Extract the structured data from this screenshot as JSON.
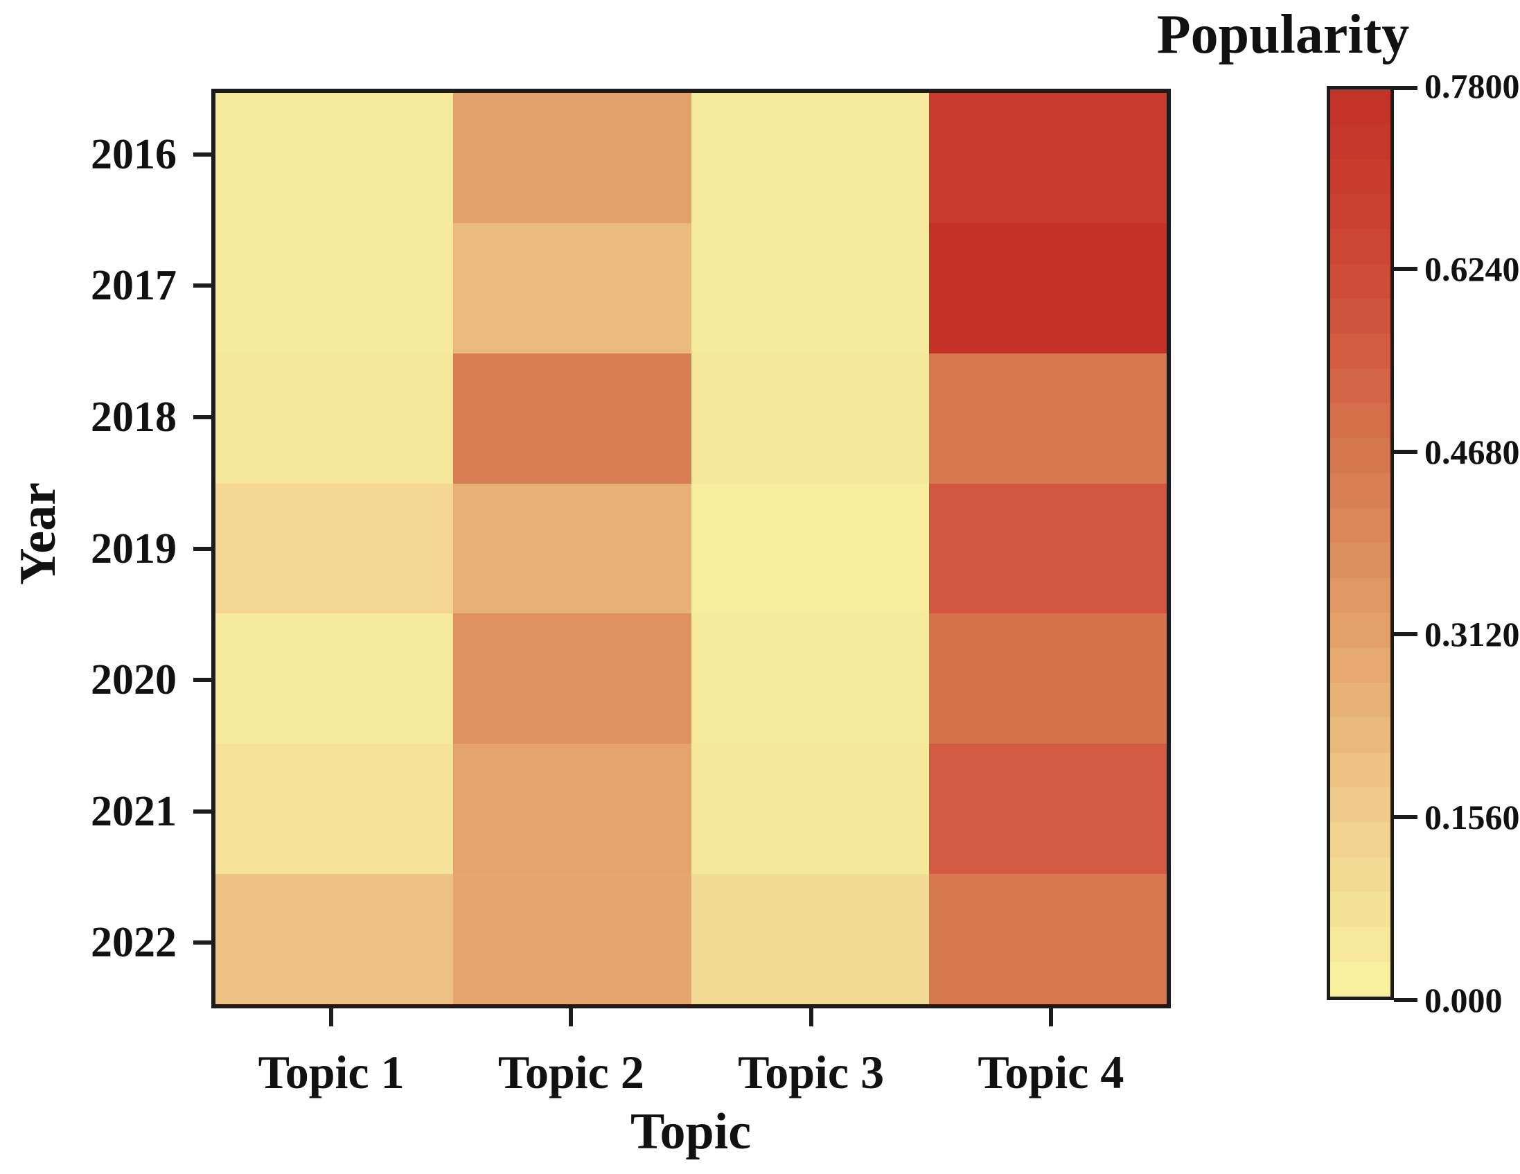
{
  "figure": {
    "background_color": "#ffffff",
    "frame_color": "#1c1c1c",
    "text_color": "#111111"
  },
  "chart_data": {
    "type": "heatmap",
    "colorbar_title": "Popularity",
    "xlabel": "Topic",
    "ylabel": "Year",
    "x_categories": [
      "Topic 1",
      "Topic 2",
      "Topic 3",
      "Topic 4"
    ],
    "y_categories": [
      "2016",
      "2017",
      "2018",
      "2019",
      "2020",
      "2021",
      "2022"
    ],
    "values": [
      [
        0.04,
        0.31,
        0.04,
        0.72
      ],
      [
        0.04,
        0.22,
        0.04,
        0.78
      ],
      [
        0.05,
        0.44,
        0.05,
        0.46
      ],
      [
        0.12,
        0.26,
        0.03,
        0.58
      ],
      [
        0.04,
        0.37,
        0.04,
        0.48
      ],
      [
        0.07,
        0.3,
        0.05,
        0.56
      ],
      [
        0.2,
        0.29,
        0.1,
        0.46
      ]
    ],
    "value_range": [
      0.0,
      0.78
    ],
    "colorbar_ticks": [
      {
        "value": 0.78,
        "label": "0.7800"
      },
      {
        "value": 0.624,
        "label": "0.6240"
      },
      {
        "value": 0.468,
        "label": "0.4680"
      },
      {
        "value": 0.312,
        "label": "0.3120"
      },
      {
        "value": 0.156,
        "label": "0.1560"
      },
      {
        "value": 0.0,
        "label": "0.000"
      }
    ],
    "color_scale": [
      {
        "value": 0.0,
        "color": "#f8f5a1"
      },
      {
        "value": 0.156,
        "color": "#f0cd8c"
      },
      {
        "value": 0.312,
        "color": "#e3a169"
      },
      {
        "value": 0.468,
        "color": "#d5764f"
      },
      {
        "value": 0.624,
        "color": "#cf4936"
      },
      {
        "value": 0.78,
        "color": "#c33127"
      }
    ],
    "grid": false,
    "legend_position": "right"
  }
}
